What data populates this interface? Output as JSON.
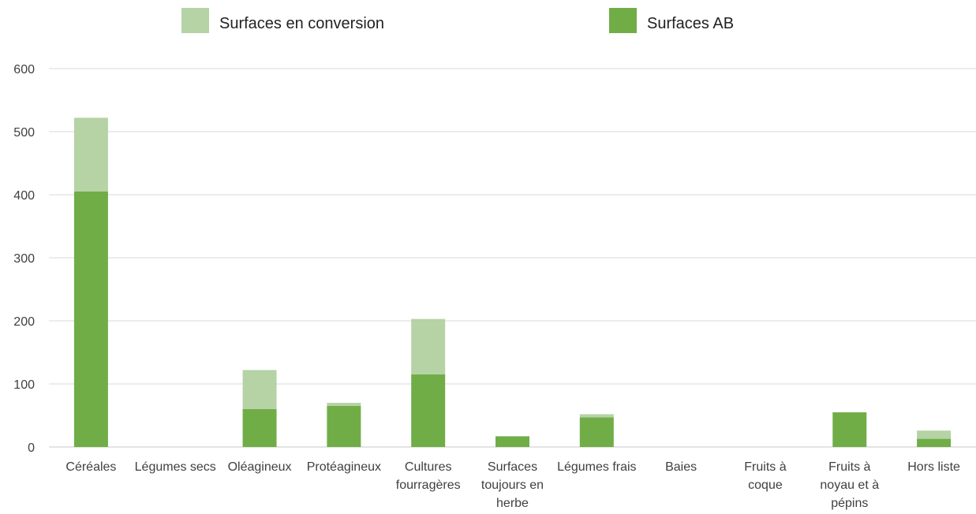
{
  "chart_data": {
    "type": "bar",
    "stacked": true,
    "title": "",
    "xlabel": "",
    "ylabel": "",
    "ylim": [
      0,
      600
    ],
    "yticks": [
      0,
      100,
      200,
      300,
      400,
      500,
      600
    ],
    "grid": true,
    "legend_position": "top",
    "categories": [
      [
        "Céréales"
      ],
      [
        "Légumes secs"
      ],
      [
        "Oléagineux"
      ],
      [
        "Protéagineux"
      ],
      [
        "Cultures",
        "fourragères"
      ],
      [
        "Surfaces",
        "toujours en",
        "herbe"
      ],
      [
        "Légumes frais"
      ],
      [
        "Baies"
      ],
      [
        "Fruits à",
        "coque"
      ],
      [
        "Fruits à",
        "noyau et à",
        "pépins"
      ],
      [
        "Hors liste"
      ]
    ],
    "series": [
      {
        "name": "Surfaces AB",
        "color": "#70ad47",
        "values": [
          405,
          0,
          60,
          65,
          115,
          17,
          47,
          0,
          0,
          55,
          13
        ]
      },
      {
        "name": "Surfaces en conversion",
        "color": "#b5d3a5",
        "values": [
          117,
          0,
          62,
          5,
          88,
          0,
          5,
          0,
          0,
          0,
          13
        ]
      }
    ],
    "legend_order": [
      "Surfaces en conversion",
      "Surfaces AB"
    ]
  }
}
